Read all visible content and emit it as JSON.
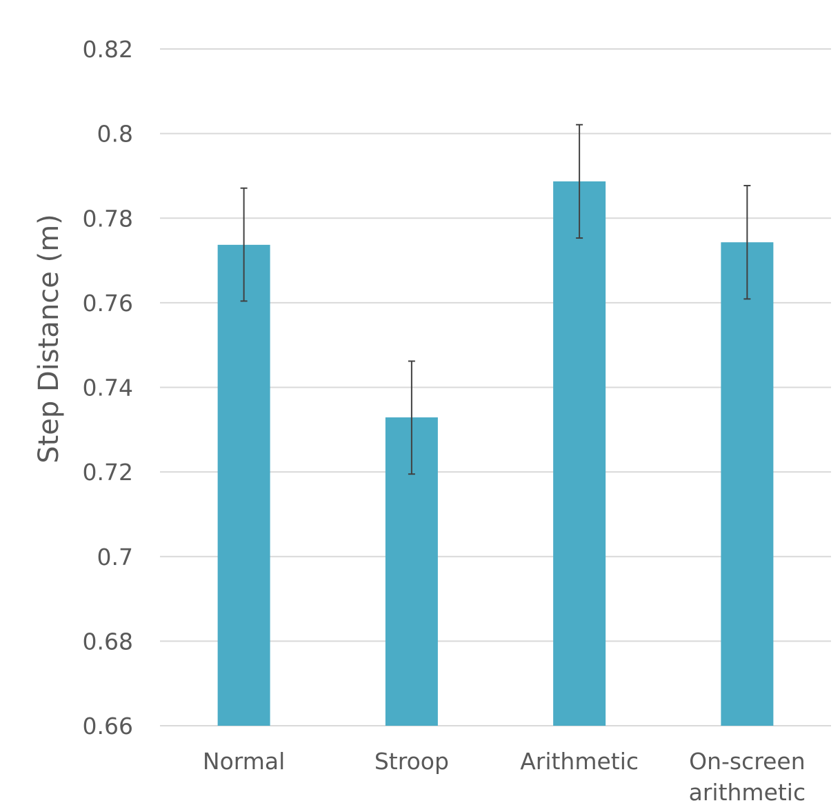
{
  "chart_data": {
    "type": "bar",
    "title": "",
    "xlabel": "",
    "ylabel": "Step Distance (m)",
    "ylim": [
      0.66,
      0.82
    ],
    "yticks": [
      "0.66",
      "0.68",
      "0.7",
      "0.72",
      "0.74",
      "0.76",
      "0.78",
      "0.8",
      "0.82"
    ],
    "ytick_values": [
      0.66,
      0.68,
      0.7,
      0.72,
      0.74,
      0.76,
      0.78,
      0.8,
      0.82
    ],
    "categories": [
      [
        "Normal"
      ],
      [
        "Stroop"
      ],
      [
        "Arithmetic"
      ],
      [
        "On-screen",
        "arithmetic"
      ]
    ],
    "values": [
      0.7737,
      0.7329,
      0.7887,
      0.7743
    ],
    "error_low": [
      0.7604,
      0.7195,
      0.7753,
      0.7609
    ],
    "error_high": [
      0.7871,
      0.7462,
      0.8021,
      0.7877
    ],
    "grid": true,
    "legend": "none",
    "colors": {
      "bar": "#4bacc6",
      "error": "#404040",
      "grid": "#d9d9d9",
      "text": "#595959"
    }
  }
}
